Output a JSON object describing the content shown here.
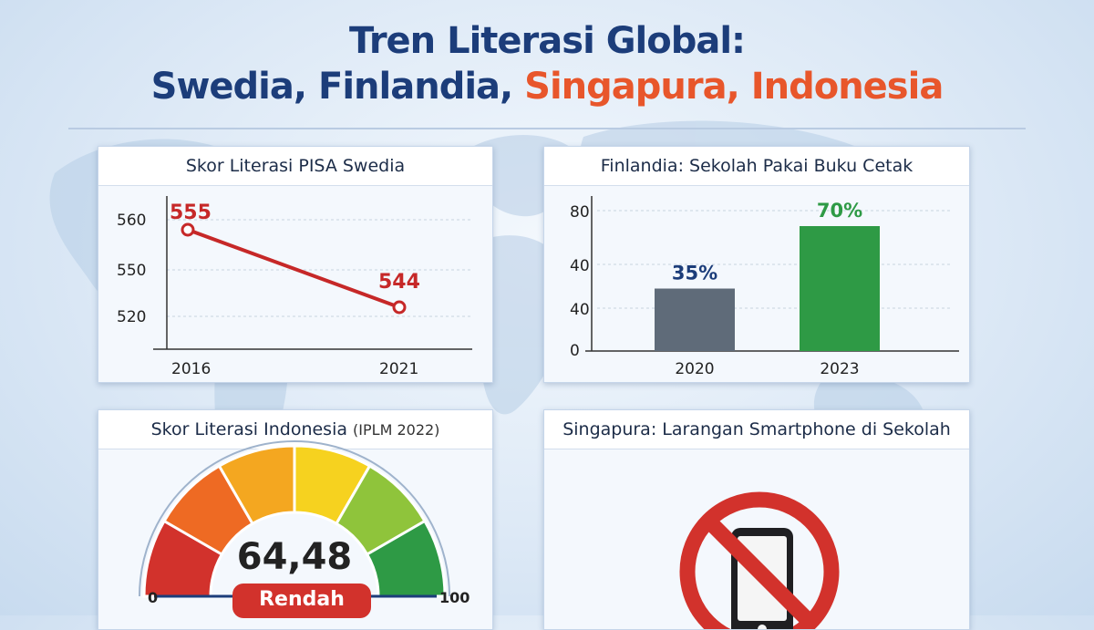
{
  "title": {
    "line1": "Tren Literasi Global:",
    "line2_main": "Swedia, Finlandia, ",
    "line2_accent": "Singapura, Indonesia"
  },
  "colors": {
    "title": "#1c3d7a",
    "accent": "#e8562b",
    "sweden_line": "#c62828",
    "bar_2020": "#5f6b79",
    "bar_2023": "#2e9a45",
    "ban_red": "#d2322c"
  },
  "chart_data": [
    {
      "type": "line",
      "title": "Skor Literasi PISA Swedia",
      "x": [
        "2016",
        "2021"
      ],
      "series": [
        {
          "values": [
            555,
            544
          ]
        }
      ],
      "data_labels": [
        "555",
        "544"
      ],
      "yticks": [
        "560",
        "550",
        "520"
      ],
      "grid": true
    },
    {
      "type": "bar",
      "title": "Finlandia: Sekolah Pakai Buku Cetak",
      "categories": [
        "2020",
        "2023"
      ],
      "values": [
        35,
        70
      ],
      "data_labels": [
        "35%",
        "70%"
      ],
      "yticks": [
        "80",
        "40",
        "40",
        "0"
      ],
      "grid": true
    },
    {
      "type": "gauge",
      "title": "Skor Literasi Indonesia",
      "title_note": "(IPLM 2022)",
      "value": 64.48,
      "value_label": "64,48",
      "range": [
        0,
        100
      ],
      "min_label": "0",
      "max_label": "100",
      "status": "Rendah",
      "segment_colors": [
        "#d2322c",
        "#ee6a23",
        "#f4a720",
        "#f6d21f",
        "#8fc43b",
        "#2e9a45"
      ]
    }
  ],
  "singapore": {
    "title": "Singapura: Larangan Smartphone di Sekolah",
    "icon": "no-smartphone-icon"
  }
}
